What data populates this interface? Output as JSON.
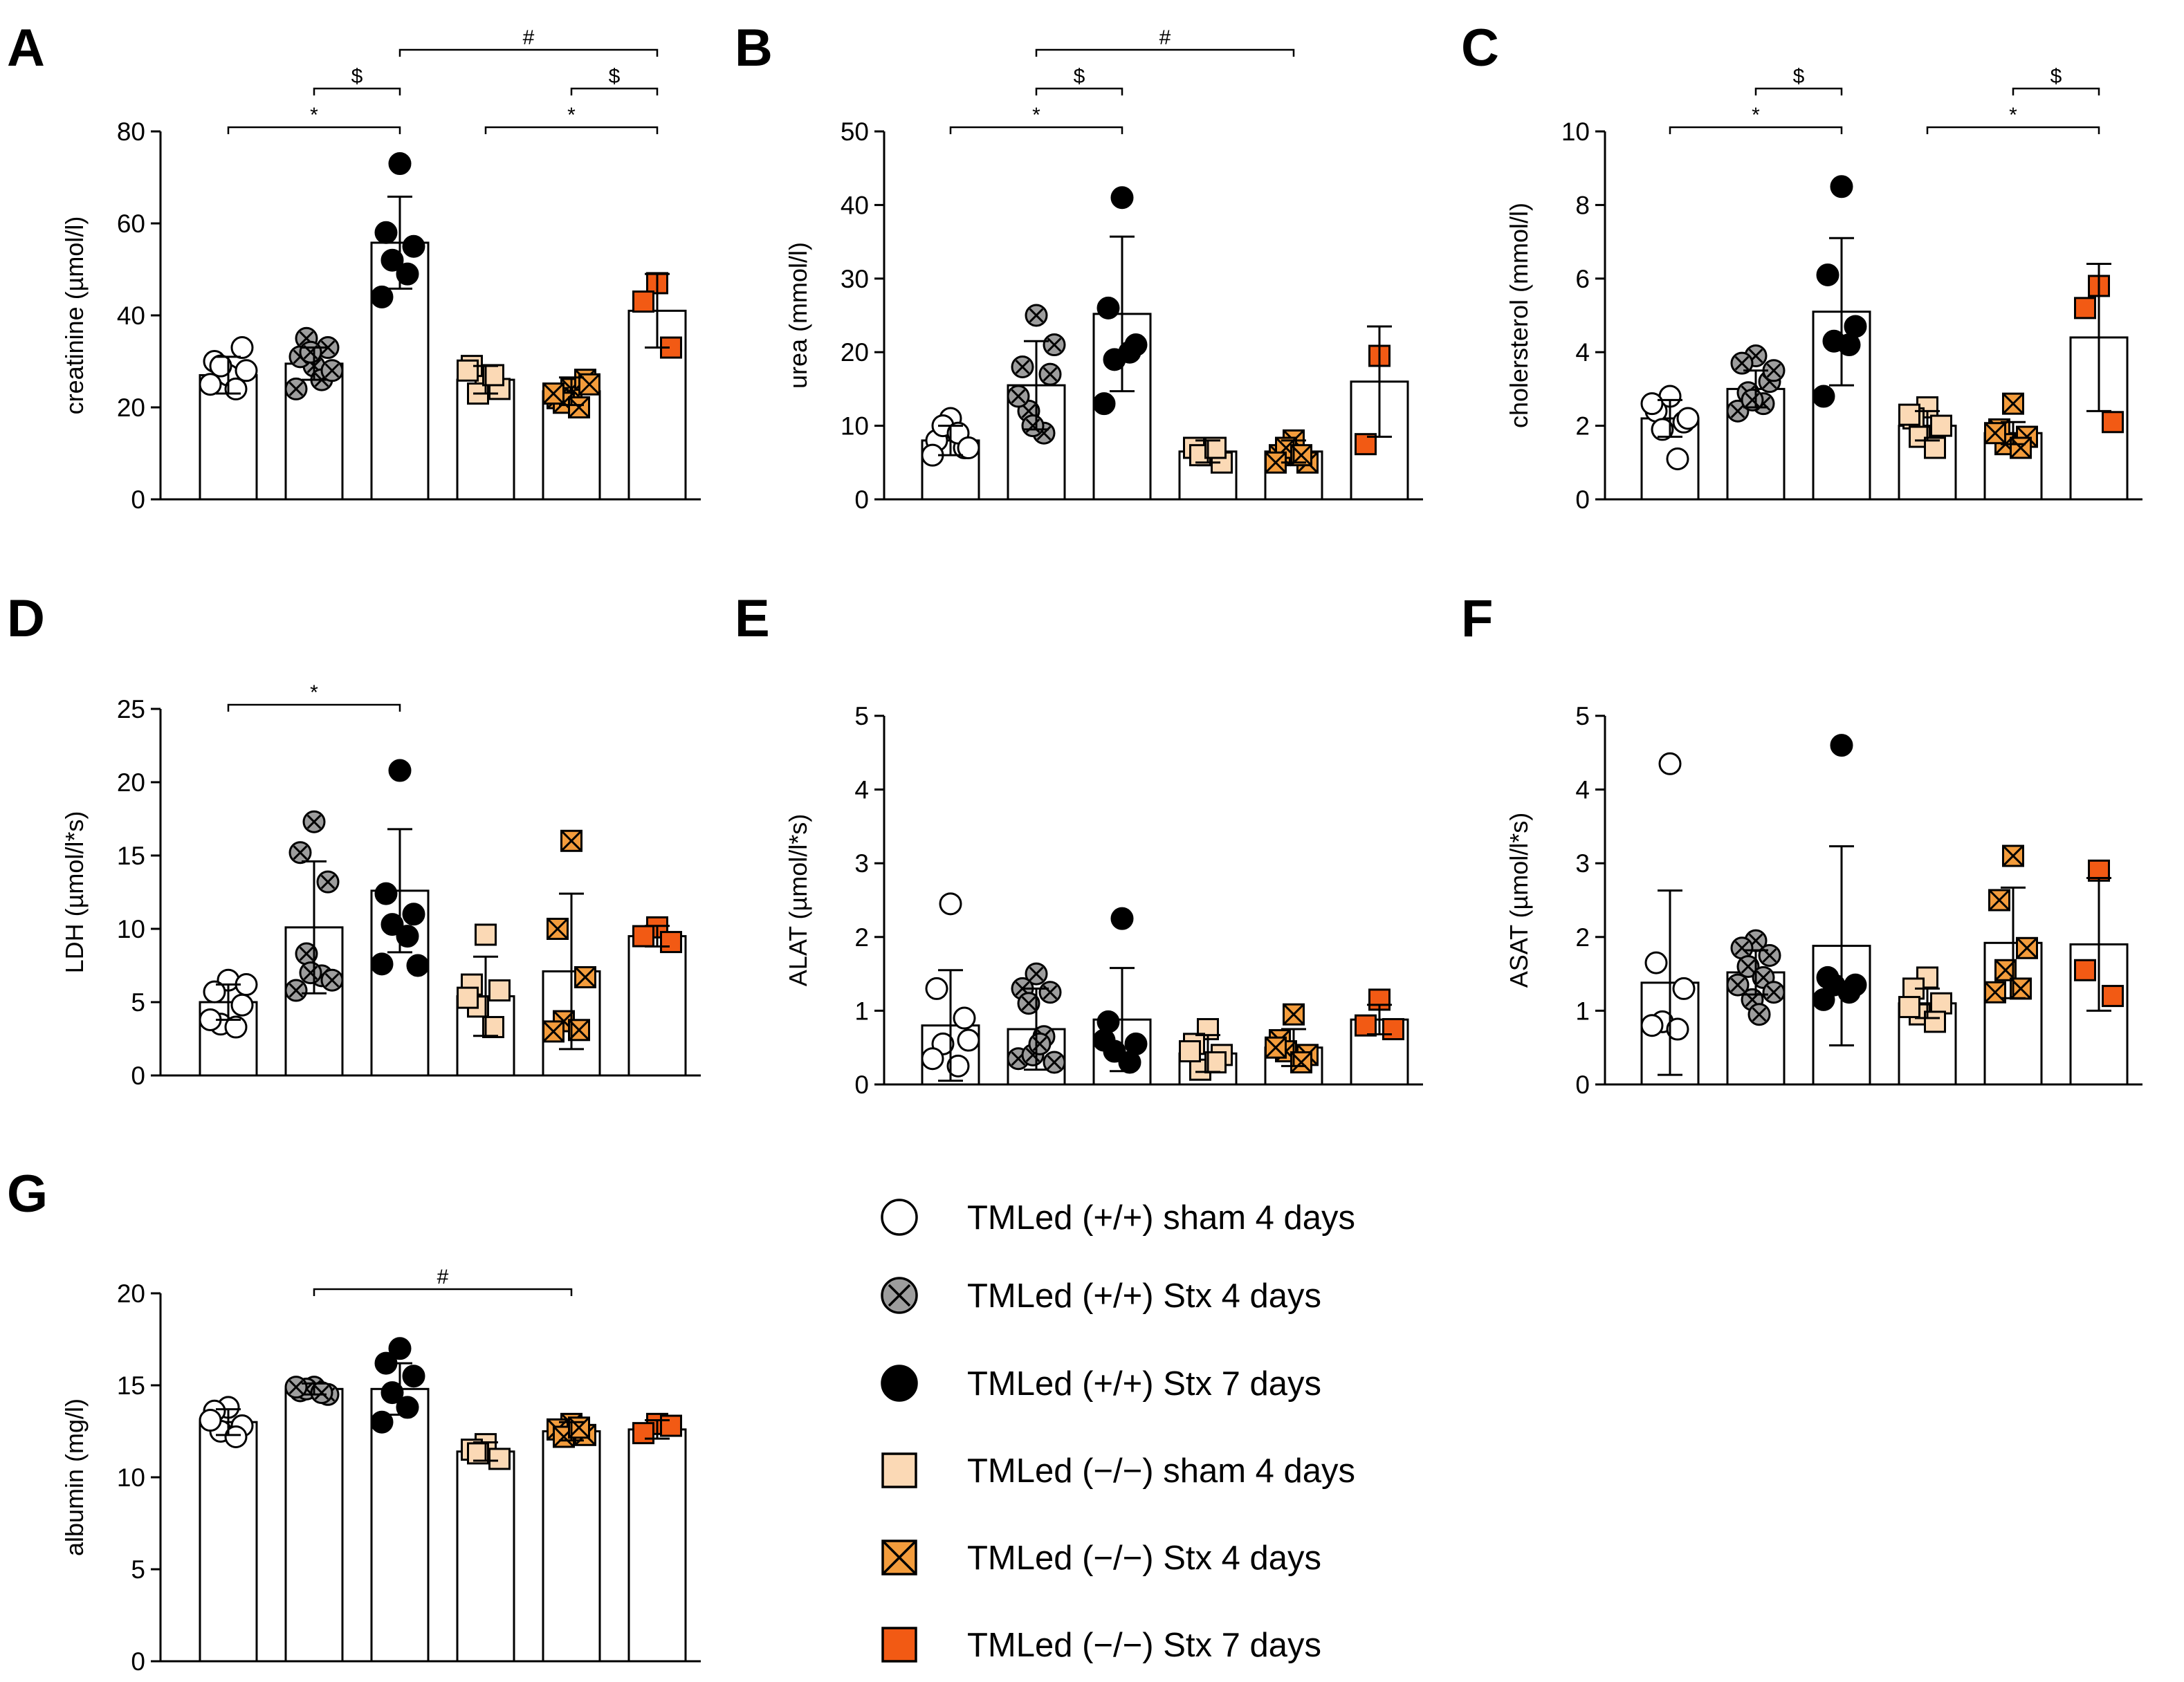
{
  "groups": [
    {
      "id": "wt_sham4",
      "label": "TMLed (+/+) sham 4 days",
      "marker": "circle",
      "fill": "#ffffff"
    },
    {
      "id": "wt_stx4",
      "label": "TMLed (+/+) Stx 4 days",
      "marker": "circle-x",
      "fill": "#9d9d9d"
    },
    {
      "id": "wt_stx7",
      "label": "TMLed (+/+) Stx 7 days",
      "marker": "circle",
      "fill": "#000000"
    },
    {
      "id": "ko_sham4",
      "label": "TMLed (−/−) sham 4 days",
      "marker": "square",
      "fill": "#fbd9b5"
    },
    {
      "id": "ko_stx4",
      "label": "TMLed (−/−) Stx 4 days",
      "marker": "square-x",
      "fill": "#f39c3c"
    },
    {
      "id": "ko_stx7",
      "label": "TMLed (−/−) Stx 7 days",
      "marker": "square",
      "fill": "#f25a14"
    }
  ],
  "chart_data": [
    {
      "panel": "A",
      "type": "bar",
      "ylabel": "creatinine (µmol/l)",
      "ylim": [
        0,
        80
      ],
      "yticks": [
        0,
        20,
        40,
        60,
        80
      ],
      "means": [
        27,
        29.5,
        55.8,
        26,
        23.5,
        41
      ],
      "sd": [
        4,
        3.5,
        10,
        3,
        3,
        8
      ],
      "points": [
        [
          27,
          30,
          33,
          29,
          24,
          25,
          28
        ],
        [
          29,
          31,
          33,
          35,
          26,
          24,
          28,
          32
        ],
        [
          73,
          58,
          55,
          52,
          49,
          44
        ],
        [
          26,
          29,
          24,
          23,
          27,
          28
        ],
        [
          24,
          22,
          26,
          21,
          20,
          23,
          25
        ],
        [
          47,
          43,
          33
        ]
      ],
      "brackets": [
        {
          "from": 0,
          "to": 2,
          "label": "*",
          "level": 0
        },
        {
          "from": 1,
          "to": 2,
          "label": "$",
          "level": 1
        },
        {
          "from": 2,
          "to": 5,
          "label": "#",
          "level": 2
        },
        {
          "from": 3,
          "to": 5,
          "label": "*",
          "level": 0
        },
        {
          "from": 4,
          "to": 5,
          "label": "$",
          "level": 1
        }
      ]
    },
    {
      "panel": "B",
      "type": "bar",
      "ylabel": "urea (mmol/l)",
      "ylim": [
        0,
        50
      ],
      "yticks": [
        0,
        10,
        20,
        30,
        40,
        50
      ],
      "means": [
        8,
        15.5,
        25.2,
        6.5,
        6.5,
        16
      ],
      "sd": [
        2,
        6,
        10.5,
        1.5,
        1.5,
        7.5
      ],
      "points": [
        [
          11,
          8,
          7,
          10,
          9,
          6,
          7
        ],
        [
          25,
          18,
          17,
          12,
          9,
          14,
          21,
          10
        ],
        [
          41,
          26,
          21,
          19,
          20,
          13
        ],
        [
          6,
          7,
          5,
          6,
          7
        ],
        [
          8,
          6,
          5,
          7,
          6,
          5
        ],
        [
          19.5,
          7.5
        ]
      ],
      "brackets": [
        {
          "from": 0,
          "to": 2,
          "label": "*",
          "level": 0
        },
        {
          "from": 1,
          "to": 2,
          "label": "$",
          "level": 1
        },
        {
          "from": 1,
          "to": 4,
          "label": "#",
          "level": 2
        }
      ]
    },
    {
      "panel": "C",
      "type": "bar",
      "ylabel": "cholersterol  (mmol/l)",
      "ylim": [
        0,
        10
      ],
      "yticks": [
        0,
        2,
        4,
        6,
        8,
        10
      ],
      "means": [
        2.2,
        3,
        5.1,
        2,
        1.8,
        4.4
      ],
      "sd": [
        0.5,
        0.5,
        2,
        0.4,
        0.3,
        2
      ],
      "points": [
        [
          2.8,
          2.4,
          2.1,
          1.9,
          1.1,
          2.6,
          2.2
        ],
        [
          3.9,
          3.7,
          3.2,
          2.9,
          2.6,
          2.4,
          3.5,
          2.7
        ],
        [
          8.5,
          6.1,
          4.7,
          4.3,
          4.2,
          2.8
        ],
        [
          2.5,
          2.2,
          2,
          1.7,
          1.4,
          2.3
        ],
        [
          2.6,
          1.9,
          1.7,
          1.5,
          1.4,
          1.8
        ],
        [
          5.8,
          5.2,
          2.1
        ]
      ],
      "brackets": [
        {
          "from": 0,
          "to": 2,
          "label": "*",
          "level": 0
        },
        {
          "from": 1,
          "to": 2,
          "label": "$",
          "level": 1
        },
        {
          "from": 3,
          "to": 5,
          "label": "*",
          "level": 0
        },
        {
          "from": 4,
          "to": 5,
          "label": "$",
          "level": 1
        }
      ]
    },
    {
      "panel": "D",
      "type": "bar",
      "ylabel": "LDH (µmol/l*s)",
      "ylim": [
        0,
        25
      ],
      "yticks": [
        0,
        5,
        10,
        15,
        20,
        25
      ],
      "means": [
        5,
        10.1,
        12.6,
        5.4,
        7.1,
        9.5
      ],
      "sd": [
        1.2,
        4.5,
        4.2,
        2.7,
        5.3,
        0.7
      ],
      "points": [
        [
          6.5,
          5.7,
          4.8,
          3.5,
          3.3,
          3.8,
          6.2
        ],
        [
          17.3,
          15.2,
          13.2,
          8.3,
          6.8,
          5.8,
          6.5,
          7
        ],
        [
          20.8,
          12.4,
          11,
          10.3,
          9.5,
          7.6,
          7.5
        ],
        [
          9.6,
          6.2,
          5.8,
          4.7,
          3.3,
          5.3
        ],
        [
          16,
          10,
          6.7,
          3.7,
          3.1,
          3
        ],
        [
          10.1,
          9.5,
          9.1
        ]
      ],
      "brackets": [
        {
          "from": 0,
          "to": 2,
          "label": "*",
          "level": 0
        }
      ]
    },
    {
      "panel": "E",
      "type": "bar",
      "ylabel": "ALAT (µmol/l*s)",
      "ylim": [
        0,
        5
      ],
      "yticks": [
        0,
        1,
        2,
        3,
        4,
        5
      ],
      "means": [
        0.8,
        0.75,
        0.88,
        0.42,
        0.5,
        0.88
      ],
      "sd": [
        0.75,
        0.55,
        0.7,
        0.25,
        0.25,
        0.2
      ],
      "points": [
        [
          2.45,
          1.3,
          0.9,
          0.55,
          0.25,
          0.35,
          0.6
        ],
        [
          1.5,
          1.3,
          1.25,
          1.1,
          0.65,
          0.35,
          0.3,
          0.4,
          0.55
        ],
        [
          2.25,
          0.85,
          0.55,
          0.45,
          0.3,
          0.6
        ],
        [
          0.75,
          0.55,
          0.4,
          0.2,
          0.3,
          0.45
        ],
        [
          0.95,
          0.6,
          0.4,
          0.45,
          0.3,
          0.5
        ],
        [
          1.15,
          0.8,
          0.75
        ]
      ],
      "brackets": []
    },
    {
      "panel": "F",
      "type": "bar",
      "ylabel": "ASAT (µmol/l*s)",
      "ylim": [
        0,
        5
      ],
      "yticks": [
        0,
        1,
        2,
        3,
        4,
        5
      ],
      "means": [
        1.38,
        1.52,
        1.88,
        1.1,
        1.92,
        1.9
      ],
      "sd": [
        1.25,
        0.3,
        1.35,
        0.2,
        0.75,
        0.9
      ],
      "points": [
        [
          4.35,
          1.65,
          1.3,
          0.85,
          0.75,
          0.8
        ],
        [
          1.95,
          1.85,
          1.75,
          1.6,
          1.45,
          1.35,
          1.25,
          1.15,
          0.95
        ],
        [
          4.6,
          1.45,
          1.35,
          1.35,
          1.25,
          1.15
        ],
        [
          1.45,
          1.3,
          1.1,
          0.95,
          0.85,
          1.05
        ],
        [
          3.1,
          2.5,
          1.85,
          1.55,
          1.3,
          1.25
        ],
        [
          2.9,
          1.55,
          1.2
        ]
      ],
      "brackets": []
    },
    {
      "panel": "G",
      "type": "bar",
      "ylabel": "albumin (mg/l)",
      "ylim": [
        0,
        20
      ],
      "yticks": [
        0,
        5,
        10,
        15,
        20
      ],
      "means": [
        13,
        14.8,
        14.8,
        11.4,
        12.5,
        12.6
      ],
      "sd": [
        0.7,
        0.3,
        1.4,
        0.5,
        0.5,
        0.5
      ],
      "points": [
        [
          13.8,
          13.6,
          12.8,
          12.5,
          12.2,
          13.1
        ],
        [
          14.9,
          14.7,
          14.5,
          14.8,
          14.6,
          14.9
        ],
        [
          17,
          16.2,
          15.5,
          14.6,
          13.8,
          13
        ],
        [
          11.8,
          11.5,
          11,
          11.3
        ],
        [
          12.9,
          12.6,
          12.3,
          12.2,
          12.7
        ],
        [
          12.9,
          12.4,
          12.8
        ]
      ],
      "brackets": [
        {
          "from": 1,
          "to": 4,
          "label": "#",
          "level": 0
        }
      ]
    }
  ]
}
